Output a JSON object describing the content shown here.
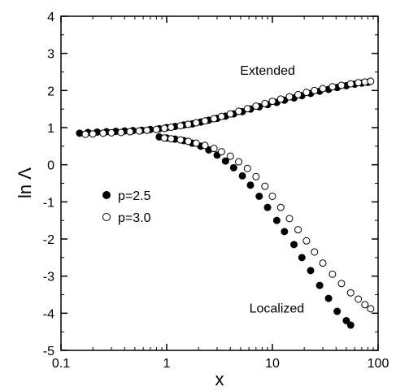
{
  "chart_data": {
    "type": "scatter",
    "title": "",
    "xlabel": "x",
    "ylabel": "ln Λ",
    "xscale": "log",
    "xlim": [
      0.1,
      100
    ],
    "ylim": [
      -5,
      4
    ],
    "xticks": [
      {
        "value": 0.1,
        "label": "0.1"
      },
      {
        "value": 1,
        "label": "1"
      },
      {
        "value": 10,
        "label": "10"
      },
      {
        "value": 100,
        "label": "100"
      }
    ],
    "yticks": [
      {
        "value": -5,
        "label": "-5"
      },
      {
        "value": -4,
        "label": "-4"
      },
      {
        "value": -3,
        "label": "-3"
      },
      {
        "value": -2,
        "label": "-2"
      },
      {
        "value": -1,
        "label": "-1"
      },
      {
        "value": 0,
        "label": "0"
      },
      {
        "value": 1,
        "label": "1"
      },
      {
        "value": 2,
        "label": "2"
      },
      {
        "value": 3,
        "label": "3"
      },
      {
        "value": 4,
        "label": "4"
      }
    ],
    "grid": false,
    "legend": {
      "position": "middle-left"
    },
    "annotations": [
      {
        "text": "Extended",
        "x": 9,
        "y": 2.55
      },
      {
        "text": "Localized",
        "x": 11,
        "y": -3.85
      }
    ],
    "series": [
      {
        "name": "p=2.5",
        "marker": "filled-circle",
        "color": "#000000",
        "branches": [
          {
            "label": "Extended",
            "x": [
              0.15,
              0.18,
              0.22,
              0.27,
              0.33,
              0.4,
              0.48,
              0.58,
              0.7,
              0.85,
              1.0,
              1.2,
              1.45,
              1.75,
              2.1,
              2.5,
              3.0,
              3.6,
              4.3,
              5.2,
              6.2,
              7.5,
              9,
              11,
              13,
              16,
              19,
              23,
              28,
              34,
              41,
              50,
              60,
              70,
              80
            ],
            "y": [
              0.85,
              0.87,
              0.88,
              0.89,
              0.9,
              0.91,
              0.92,
              0.93,
              0.95,
              0.97,
              1.0,
              1.03,
              1.07,
              1.1,
              1.15,
              1.2,
              1.25,
              1.31,
              1.37,
              1.43,
              1.5,
              1.56,
              1.62,
              1.68,
              1.74,
              1.8,
              1.86,
              1.92,
              1.98,
              2.03,
              2.08,
              2.13,
              2.17,
              2.2,
              2.22
            ]
          },
          {
            "label": "Localized",
            "x": [
              0.85,
              1.0,
              1.2,
              1.45,
              1.75,
              2.1,
              2.5,
              3.0,
              3.6,
              4.3,
              5.2,
              6.2,
              7.5,
              9,
              11,
              13,
              16,
              19,
              23,
              28,
              34,
              41,
              50,
              55
            ],
            "y": [
              0.75,
              0.72,
              0.69,
              0.65,
              0.58,
              0.5,
              0.4,
              0.26,
              0.1,
              -0.08,
              -0.3,
              -0.55,
              -0.85,
              -1.15,
              -1.5,
              -1.8,
              -2.15,
              -2.5,
              -2.85,
              -3.25,
              -3.6,
              -3.95,
              -4.2,
              -4.32
            ]
          }
        ]
      },
      {
        "name": "p=3.0",
        "marker": "open-circle",
        "color": "#000000",
        "branches": [
          {
            "label": "Extended",
            "x": [
              0.17,
              0.2,
              0.25,
              0.3,
              0.37,
              0.45,
              0.55,
              0.65,
              0.8,
              0.95,
              1.1,
              1.35,
              1.6,
              1.9,
              2.3,
              2.8,
              3.3,
              4.0,
              4.8,
              5.8,
              7,
              8.5,
              10,
              12,
              14.5,
              17.5,
              21,
              25,
              30,
              37,
              45,
              55,
              65,
              75,
              85
            ],
            "y": [
              0.82,
              0.83,
              0.85,
              0.86,
              0.87,
              0.89,
              0.91,
              0.93,
              0.95,
              0.98,
              1.01,
              1.05,
              1.09,
              1.13,
              1.18,
              1.24,
              1.3,
              1.37,
              1.44,
              1.51,
              1.58,
              1.65,
              1.71,
              1.77,
              1.83,
              1.89,
              1.95,
              2.0,
              2.05,
              2.1,
              2.14,
              2.18,
              2.21,
              2.23,
              2.25
            ]
          },
          {
            "label": "Localized",
            "x": [
              0.95,
              1.1,
              1.35,
              1.6,
              1.9,
              2.3,
              2.8,
              3.3,
              4.0,
              4.8,
              5.8,
              7,
              8.5,
              10,
              12,
              14.5,
              17.5,
              21,
              25,
              30,
              37,
              45,
              55,
              65,
              75,
              85
            ],
            "y": [
              0.72,
              0.7,
              0.67,
              0.63,
              0.58,
              0.52,
              0.44,
              0.35,
              0.23,
              0.08,
              -0.1,
              -0.32,
              -0.58,
              -0.85,
              -1.15,
              -1.45,
              -1.75,
              -2.05,
              -2.35,
              -2.65,
              -2.95,
              -3.2,
              -3.45,
              -3.62,
              -3.77,
              -3.88
            ]
          }
        ]
      }
    ]
  }
}
